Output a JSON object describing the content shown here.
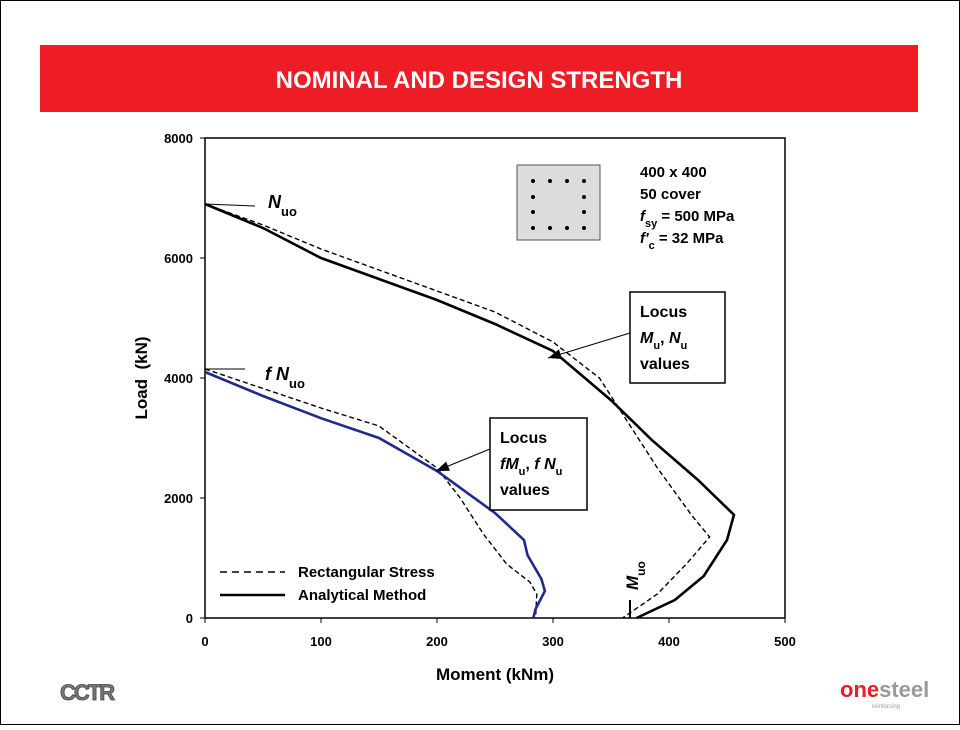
{
  "chart_data": {
    "type": "line",
    "title": "NOMINAL AND DESIGN STRENGTH",
    "xlabel": "Moment (kNm)",
    "ylabel": "Load  (kN)",
    "xlim": [
      0,
      500
    ],
    "ylim": [
      0,
      8000
    ],
    "xticks": [
      0,
      100,
      200,
      300,
      400,
      500
    ],
    "yticks": [
      0,
      2000,
      4000,
      6000,
      8000
    ],
    "series": [
      {
        "name": "Rectangular Stress",
        "dash": true,
        "curves": [
          {
            "color": "#000000",
            "x": [
              0,
              50,
              100,
              200,
              250,
              300,
              340,
              360,
              390,
              420,
              435,
              415,
              390,
              360
            ],
            "values": [
              6900,
              6550,
              6150,
              5450,
              5100,
              4600,
              4000,
              3400,
              2500,
              1700,
              1350,
              900,
              400,
              0
            ]
          },
          {
            "color": "#000000",
            "x": [
              0,
              100,
              150,
              200,
              220,
              240,
              260,
              280,
              286,
              285
            ],
            "values": [
              4150,
              3500,
              3200,
              2500,
              2000,
              1400,
              900,
              600,
              400,
              0
            ]
          }
        ]
      },
      {
        "name": "Analytical Method",
        "dash": false,
        "curves": [
          {
            "color": "#000000",
            "x": [
              0,
              50,
              100,
              150,
              200,
              250,
              300,
              350,
              385,
              425,
              456,
              450,
              430,
              405,
              372
            ],
            "values": [
              6900,
              6500,
              6000,
              5650,
              5300,
              4900,
              4450,
              3630,
              2970,
              2300,
              1720,
              1300,
              700,
              300,
              0
            ]
          },
          {
            "color": "#1f2a8c",
            "x": [
              0,
              50,
              100,
              150,
              200,
              250,
              275,
              278,
              290,
              293,
              285,
              283
            ],
            "values": [
              4100,
              3700,
              3330,
              3000,
              2450,
              1750,
              1300,
              1050,
              650,
              450,
              150,
              0
            ]
          }
        ]
      }
    ],
    "annotations": {
      "nuo": [
        {
          "text": "N",
          "italic": true
        },
        {
          "text": "uo",
          "sub": true
        }
      ],
      "fnuo": [
        {
          "text": "f ",
          "italic": true
        },
        {
          "text": "N",
          "italic": true
        },
        {
          "text": "uo",
          "sub": true
        }
      ],
      "muo": [
        {
          "text": "M",
          "italic": true
        },
        {
          "text": "uo",
          "sub": true
        }
      ],
      "locus_nominal": [
        [
          {
            "text": "Locus"
          }
        ],
        [
          {
            "text": "M",
            "italic": true
          },
          {
            "text": "u",
            "sub": true
          },
          {
            "text": ", "
          },
          {
            "text": "N",
            "italic": true
          },
          {
            "text": "u",
            "sub": true
          }
        ],
        [
          {
            "text": "values"
          }
        ]
      ],
      "locus_design": [
        [
          {
            "text": "Locus"
          }
        ],
        [
          {
            "text": "f",
            "italic": true
          },
          {
            "text": "M",
            "italic": true
          },
          {
            "text": "u",
            "sub": true
          },
          {
            "text": ", "
          },
          {
            "text": "f ",
            "italic": true
          },
          {
            "text": "N",
            "italic": true
          },
          {
            "text": "u",
            "sub": true
          }
        ],
        [
          {
            "text": "values"
          }
        ]
      ],
      "section": [
        [
          {
            "text": "400 x 400"
          }
        ],
        [
          {
            "text": "50 cover"
          }
        ],
        [
          {
            "text": "f",
            "italic": true
          },
          {
            "text": "sy",
            "sub": true
          },
          {
            "text": " = 500 MPa"
          }
        ],
        [
          {
            "text": "f'",
            "italic": true
          },
          {
            "text": "c",
            "sub": true
          },
          {
            "text": " = 32 MPa"
          }
        ]
      ]
    },
    "logos": {
      "left": "CCTR",
      "right_a": "one",
      "right_b": "steel",
      "tagline": "reinforcing"
    }
  }
}
